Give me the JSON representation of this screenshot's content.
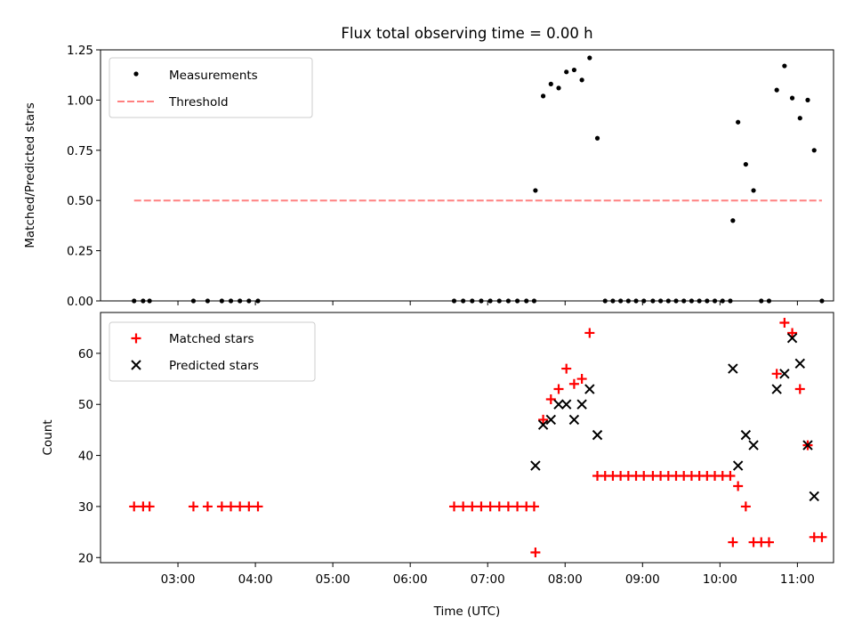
{
  "chart_data": [
    {
      "type": "scatter",
      "title": "Flux total observing time = 0.00 h",
      "ylabel": "Matched/Predicted stars",
      "ylim": [
        0,
        1.25
      ],
      "yticks": [
        0,
        0.25,
        0.5,
        0.75,
        1.0,
        1.25
      ],
      "ytick_labels": [
        "0.00",
        "0.25",
        "0.50",
        "0.75",
        "1.00",
        "1.25"
      ],
      "legend": {
        "placement": "top-left",
        "entries": [
          "Measurements",
          "Threshold"
        ]
      },
      "series": [
        {
          "name": "Measurements",
          "marker": "dot",
          "color": "#000000",
          "points": [
            [
              "02:26",
              0
            ],
            [
              "02:33",
              0
            ],
            [
              "02:38",
              0
            ],
            [
              "03:12",
              0
            ],
            [
              "03:23",
              0
            ],
            [
              "03:34",
              0
            ],
            [
              "03:41",
              0
            ],
            [
              "03:48",
              0
            ],
            [
              "03:55",
              0
            ],
            [
              "04:02",
              0
            ],
            [
              "06:34",
              0
            ],
            [
              "06:41",
              0
            ],
            [
              "06:48",
              0
            ],
            [
              "06:55",
              0
            ],
            [
              "07:02",
              0
            ],
            [
              "07:09",
              0
            ],
            [
              "07:16",
              0
            ],
            [
              "07:23",
              0
            ],
            [
              "07:30",
              0
            ],
            [
              "07:36",
              0
            ],
            [
              "07:37",
              0.55
            ],
            [
              "07:43",
              1.02
            ],
            [
              "07:49",
              1.08
            ],
            [
              "07:55",
              1.06
            ],
            [
              "08:01",
              1.14
            ],
            [
              "08:07",
              1.15
            ],
            [
              "08:13",
              1.1
            ],
            [
              "08:19",
              1.21
            ],
            [
              "08:25",
              0.81
            ],
            [
              "08:31",
              0
            ],
            [
              "08:37",
              0
            ],
            [
              "08:43",
              0
            ],
            [
              "08:49",
              0
            ],
            [
              "08:55",
              0
            ],
            [
              "09:01",
              0
            ],
            [
              "09:08",
              0
            ],
            [
              "09:14",
              0
            ],
            [
              "09:20",
              0
            ],
            [
              "09:26",
              0
            ],
            [
              "09:32",
              0
            ],
            [
              "09:38",
              0
            ],
            [
              "09:44",
              0
            ],
            [
              "09:50",
              0
            ],
            [
              "09:56",
              0
            ],
            [
              "10:02",
              0
            ],
            [
              "10:08",
              0
            ],
            [
              "10:10",
              0.4
            ],
            [
              "10:14",
              0.89
            ],
            [
              "10:20",
              0.68
            ],
            [
              "10:26",
              0.55
            ],
            [
              "10:32",
              0
            ],
            [
              "10:38",
              0
            ],
            [
              "10:44",
              1.05
            ],
            [
              "10:50",
              1.17
            ],
            [
              "10:56",
              1.01
            ],
            [
              "11:02",
              0.91
            ],
            [
              "11:08",
              1.0
            ],
            [
              "11:13",
              0.75
            ],
            [
              "11:19",
              0
            ]
          ]
        },
        {
          "name": "Threshold",
          "type": "line",
          "style": "dashed",
          "color": "#ff8080",
          "points": [
            [
              "02:26",
              0.5
            ],
            [
              "11:19",
              0.5
            ]
          ]
        }
      ]
    },
    {
      "type": "scatter",
      "xlabel": "Time (UTC)",
      "ylabel": "Count",
      "ylim": [
        19,
        68
      ],
      "yticks": [
        20,
        30,
        40,
        50,
        60
      ],
      "ytick_labels": [
        "20",
        "30",
        "40",
        "50",
        "60"
      ],
      "xlim": [
        "02:00",
        "11:28"
      ],
      "xticks": [
        "03:00",
        "04:00",
        "05:00",
        "06:00",
        "07:00",
        "08:00",
        "09:00",
        "10:00",
        "11:00"
      ],
      "legend": {
        "placement": "top-left",
        "entries": [
          "Matched stars",
          "Predicted stars"
        ]
      },
      "series": [
        {
          "name": "Matched stars",
          "marker": "plus",
          "color": "#ff0000",
          "points": [
            [
              "02:26",
              30
            ],
            [
              "02:33",
              30
            ],
            [
              "02:38",
              30
            ],
            [
              "03:12",
              30
            ],
            [
              "03:23",
              30
            ],
            [
              "03:34",
              30
            ],
            [
              "03:41",
              30
            ],
            [
              "03:48",
              30
            ],
            [
              "03:55",
              30
            ],
            [
              "04:02",
              30
            ],
            [
              "06:34",
              30
            ],
            [
              "06:41",
              30
            ],
            [
              "06:48",
              30
            ],
            [
              "06:55",
              30
            ],
            [
              "07:02",
              30
            ],
            [
              "07:09",
              30
            ],
            [
              "07:16",
              30
            ],
            [
              "07:23",
              30
            ],
            [
              "07:30",
              30
            ],
            [
              "07:36",
              30
            ],
            [
              "07:37",
              21
            ],
            [
              "07:43",
              47
            ],
            [
              "07:49",
              51
            ],
            [
              "07:55",
              53
            ],
            [
              "08:01",
              57
            ],
            [
              "08:07",
              54
            ],
            [
              "08:13",
              55
            ],
            [
              "08:19",
              64
            ],
            [
              "08:25",
              36
            ],
            [
              "08:31",
              36
            ],
            [
              "08:37",
              36
            ],
            [
              "08:43",
              36
            ],
            [
              "08:49",
              36
            ],
            [
              "08:55",
              36
            ],
            [
              "09:01",
              36
            ],
            [
              "09:08",
              36
            ],
            [
              "09:14",
              36
            ],
            [
              "09:20",
              36
            ],
            [
              "09:26",
              36
            ],
            [
              "09:32",
              36
            ],
            [
              "09:38",
              36
            ],
            [
              "09:44",
              36
            ],
            [
              "09:50",
              36
            ],
            [
              "09:56",
              36
            ],
            [
              "10:02",
              36
            ],
            [
              "10:08",
              36
            ],
            [
              "10:10",
              23
            ],
            [
              "10:14",
              34
            ],
            [
              "10:20",
              30
            ],
            [
              "10:26",
              23
            ],
            [
              "10:32",
              23
            ],
            [
              "10:38",
              23
            ],
            [
              "10:44",
              56
            ],
            [
              "10:50",
              66
            ],
            [
              "10:56",
              64
            ],
            [
              "11:02",
              53
            ],
            [
              "11:08",
              42
            ],
            [
              "11:13",
              24
            ],
            [
              "11:19",
              24
            ]
          ]
        },
        {
          "name": "Predicted stars",
          "marker": "x",
          "color": "#000000",
          "points": [
            [
              "07:37",
              38
            ],
            [
              "07:43",
              46
            ],
            [
              "07:49",
              47
            ],
            [
              "07:55",
              50
            ],
            [
              "08:01",
              50
            ],
            [
              "08:07",
              47
            ],
            [
              "08:13",
              50
            ],
            [
              "08:19",
              53
            ],
            [
              "08:25",
              44
            ],
            [
              "10:10",
              57
            ],
            [
              "10:14",
              38
            ],
            [
              "10:20",
              44
            ],
            [
              "10:26",
              42
            ],
            [
              "10:44",
              53
            ],
            [
              "10:50",
              56
            ],
            [
              "10:56",
              63
            ],
            [
              "11:02",
              58
            ],
            [
              "11:08",
              42
            ],
            [
              "11:13",
              32
            ]
          ]
        }
      ]
    }
  ]
}
